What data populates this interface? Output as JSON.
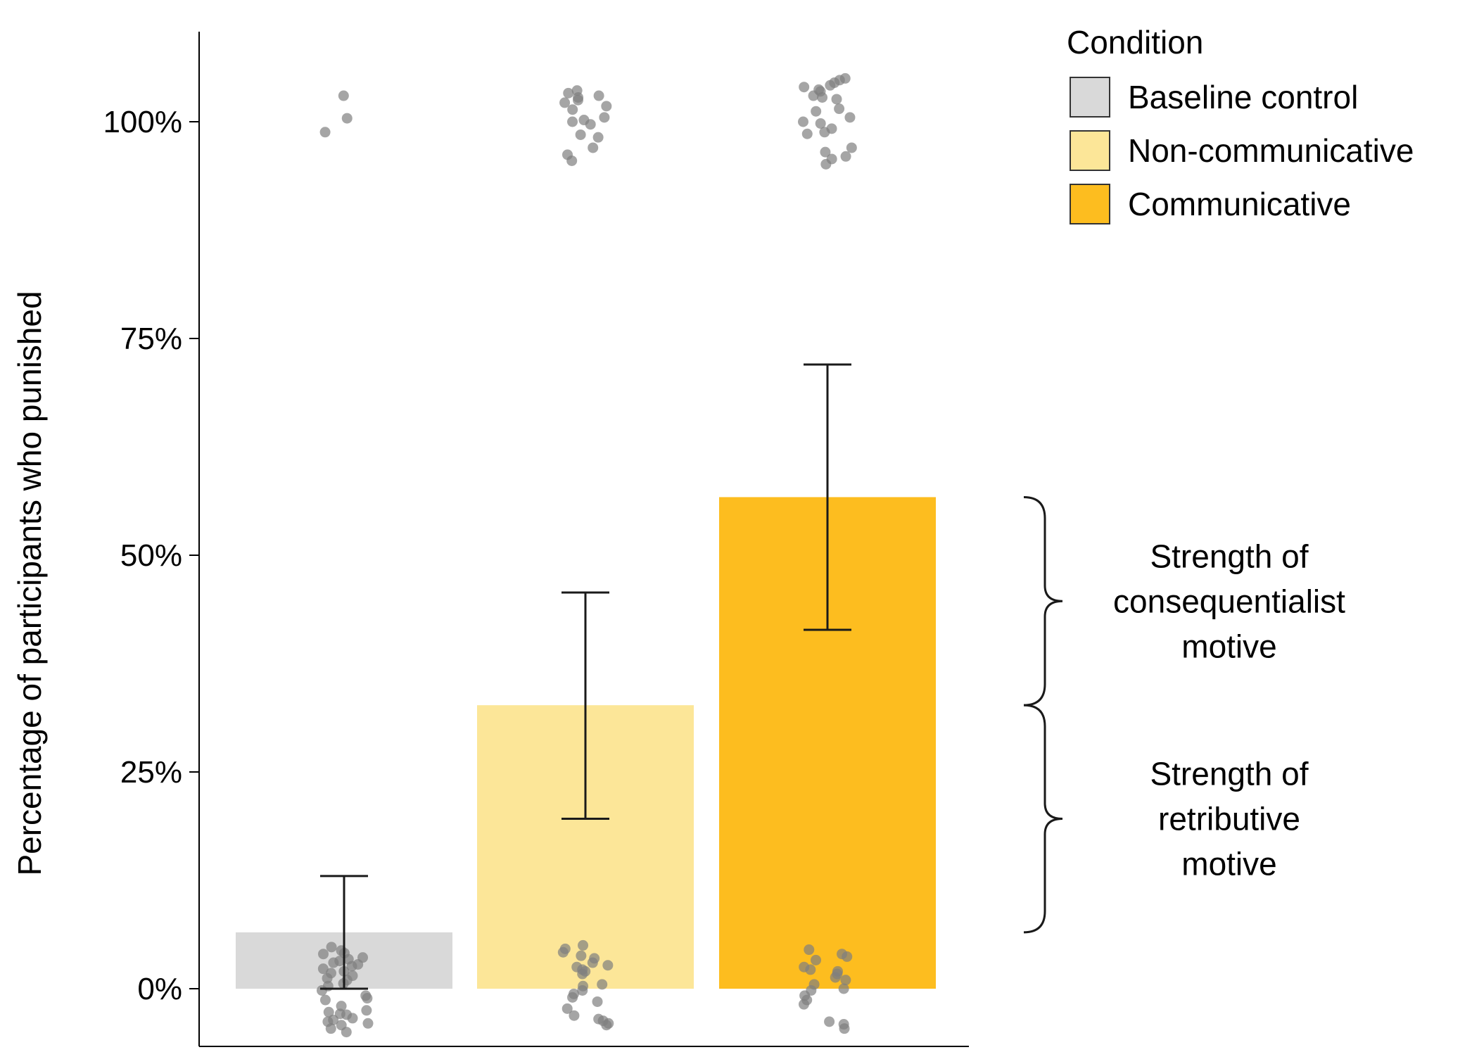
{
  "chart_data": {
    "type": "bar",
    "title": "",
    "xlabel": "",
    "ylabel": "Percentage of participants who punished",
    "ylim": [
      -0.065,
      1.1
    ],
    "yticks": [
      {
        "value": 0,
        "label": "0%"
      },
      {
        "value": 0.25,
        "label": "25%"
      },
      {
        "value": 0.5,
        "label": "50%"
      },
      {
        "value": 0.75,
        "label": "75%"
      },
      {
        "value": 1.0,
        "label": "100%"
      }
    ],
    "grid": false,
    "legend": {
      "title": "Condition",
      "placement": "top-right",
      "entries": [
        {
          "label": "Baseline control",
          "color": "#D9D9D9"
        },
        {
          "label": "Non-communicative",
          "color": "#FCE698"
        },
        {
          "label": "Communicative",
          "color": "#FDBD1F"
        }
      ]
    },
    "categories": [
      "Baseline control",
      "Non-communicative",
      "Communicative"
    ],
    "values": [
      0.065,
      0.327,
      0.567
    ],
    "error_bars": [
      {
        "low": 0.0,
        "high": 0.13
      },
      {
        "low": 0.196,
        "high": 0.457
      },
      {
        "low": 0.414,
        "high": 0.72
      }
    ],
    "jitter_points": [
      {
        "top": [
          1.03,
          1.004,
          0.988
        ],
        "bottom": [
          0.048,
          0.044,
          0.041,
          0.04,
          0.036,
          0.034,
          0.032,
          0.03,
          0.028,
          0.026,
          0.023,
          0.02,
          0.018,
          0.015,
          0.012,
          0.01,
          0.006,
          0.003,
          -0.002,
          -0.008,
          -0.011,
          -0.013,
          -0.02,
          -0.025,
          -0.027,
          -0.029,
          -0.03,
          -0.034,
          -0.036,
          -0.038,
          -0.04,
          -0.042,
          -0.046,
          -0.05
        ]
      },
      {
        "top": [
          1.036,
          1.033,
          1.03,
          1.028,
          1.025,
          1.022,
          1.018,
          1.014,
          1.005,
          1.002,
          1.0,
          0.997,
          0.985,
          0.982,
          0.97,
          0.962,
          0.955
        ],
        "bottom": [
          0.05,
          0.046,
          0.042,
          0.038,
          0.035,
          0.03,
          0.027,
          0.025,
          0.022,
          0.02,
          0.017,
          0.005,
          0.003,
          -0.002,
          -0.006,
          -0.01,
          -0.015,
          -0.023,
          -0.031,
          -0.035,
          -0.037,
          -0.04,
          -0.042
        ]
      },
      {
        "top": [
          1.05,
          1.048,
          1.045,
          1.042,
          1.04,
          1.037,
          1.035,
          1.03,
          1.028,
          1.026,
          1.015,
          1.012,
          1.005,
          1.0,
          0.998,
          0.992,
          0.988,
          0.986,
          0.97,
          0.965,
          0.96,
          0.957,
          0.951
        ],
        "bottom": [
          0.045,
          0.04,
          0.037,
          0.033,
          0.025,
          0.022,
          0.02,
          0.017,
          0.013,
          0.01,
          0.005,
          0.0,
          -0.002,
          -0.008,
          -0.013,
          -0.018,
          -0.038,
          -0.041,
          -0.046
        ]
      }
    ],
    "annotations": [
      {
        "label": "Strength of consequentialist motive",
        "lines": [
          "Strength of",
          "consequentialist",
          "motive"
        ],
        "from": 0.327,
        "to": 0.567
      },
      {
        "label": "Strength of retributive motive",
        "lines": [
          "Strength of",
          "retributive",
          "motive"
        ],
        "from": 0.065,
        "to": 0.327
      }
    ],
    "colors": {
      "axis": "#000000",
      "error_bar": "#1a1a1a",
      "points": "#7f7f7f"
    }
  }
}
